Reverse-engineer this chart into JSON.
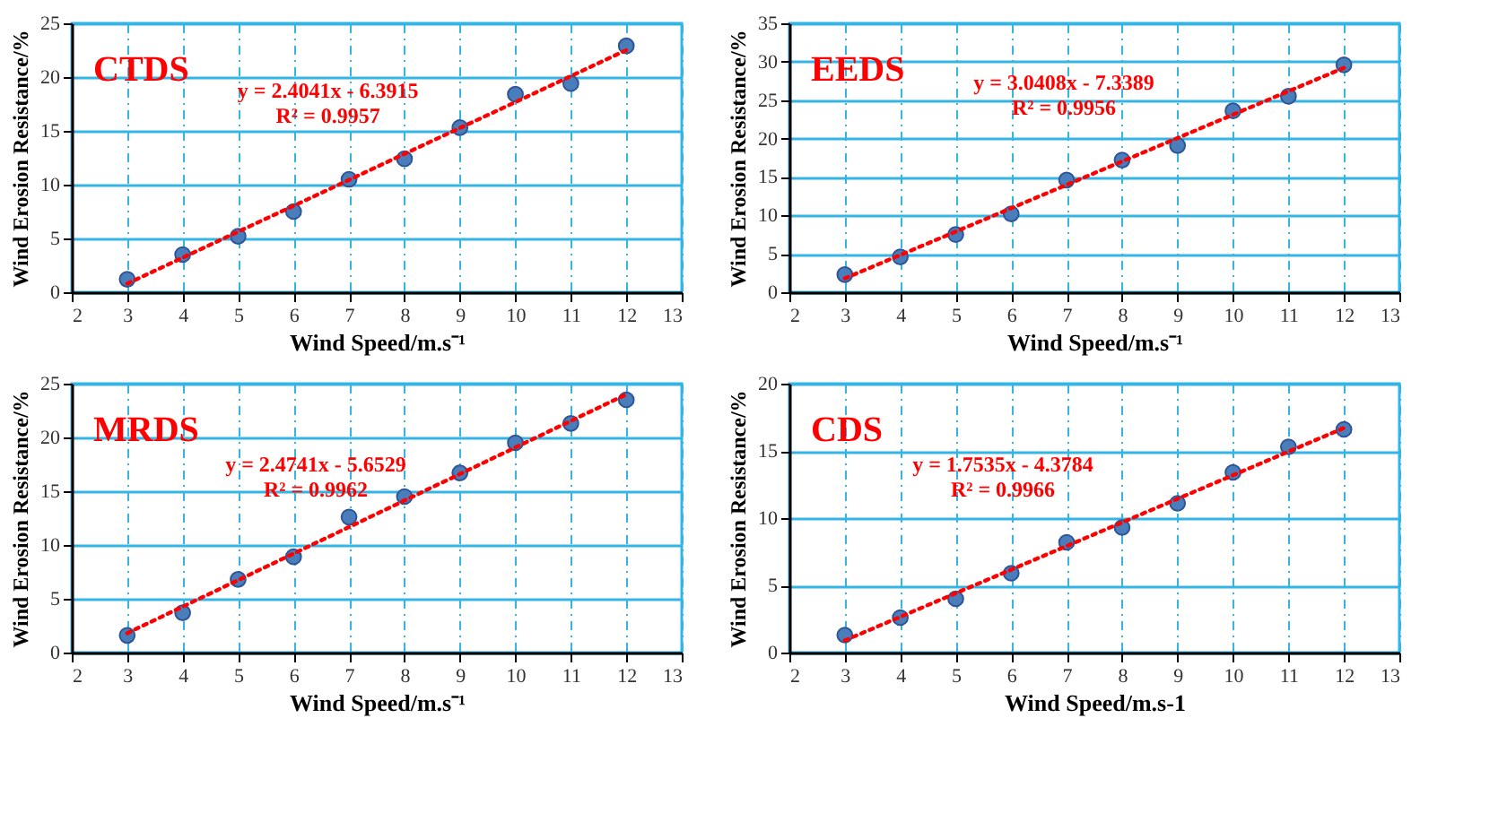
{
  "chart_data": [
    {
      "type": "scatter",
      "title": "CTDS",
      "xlabel": "Wind Speed/m.s⁻¹",
      "ylabel": "Wind Erosion Resistance/%",
      "xlim": [
        2,
        13
      ],
      "xticks": [
        2,
        3,
        4,
        5,
        6,
        7,
        8,
        9,
        10,
        11,
        12,
        13
      ],
      "ylim": [
        0,
        25
      ],
      "yticks": [
        0,
        5,
        10,
        15,
        20,
        25
      ],
      "grid": true,
      "annotations": [
        "y = 2.4041x - 6.3915",
        "R² = 0.9957"
      ],
      "series": [
        {
          "type": "scatter",
          "marker": "circle",
          "color": "#4a7ebb",
          "x": [
            3,
            4,
            5,
            6,
            7,
            8,
            9,
            10,
            11,
            12
          ],
          "values": [
            1.2,
            3.5,
            5.2,
            7.5,
            10.5,
            12.4,
            15.3,
            18.4,
            19.4,
            22.9
          ]
        },
        {
          "type": "line",
          "color": "#ff0000",
          "line_style": "dotted",
          "x": [
            3,
            12
          ],
          "values": [
            0.8,
            22.5
          ]
        }
      ]
    },
    {
      "type": "scatter",
      "title": "EEDS",
      "xlabel": "Wind Speed/m.s⁻¹",
      "ylabel": "Wind Erosion Resistance/%",
      "xlim": [
        2,
        13
      ],
      "xticks": [
        2,
        3,
        4,
        5,
        6,
        7,
        8,
        9,
        10,
        11,
        12,
        13
      ],
      "ylim": [
        0,
        35
      ],
      "yticks": [
        0,
        5,
        10,
        15,
        20,
        25,
        30,
        35
      ],
      "grid": true,
      "annotations": [
        "y = 3.0408x - 7.3389",
        "R² = 0.9956"
      ],
      "series": [
        {
          "type": "scatter",
          "marker": "circle",
          "color": "#4a7ebb",
          "x": [
            3,
            4,
            5,
            6,
            7,
            8,
            9,
            10,
            11,
            12
          ],
          "values": [
            2.3,
            4.6,
            7.5,
            10.2,
            14.6,
            17.2,
            19.1,
            23.6,
            25.5,
            29.6
          ]
        },
        {
          "type": "line",
          "color": "#ff0000",
          "line_style": "dotted",
          "x": [
            3,
            12
          ],
          "values": [
            1.8,
            29.2
          ]
        }
      ]
    },
    {
      "type": "scatter",
      "title": "MRDS",
      "xlabel": "Wind Speed/m.s⁻¹",
      "ylabel": "Wind Erosion Resistance/%",
      "xlim": [
        2,
        13
      ],
      "xticks": [
        2,
        3,
        4,
        5,
        6,
        7,
        8,
        9,
        10,
        11,
        12,
        13
      ],
      "ylim": [
        0,
        25
      ],
      "yticks": [
        0,
        5,
        10,
        15,
        20,
        25
      ],
      "grid": true,
      "annotations": [
        "y = 2.4741x - 5.6529",
        "R² = 0.9962"
      ],
      "series": [
        {
          "type": "scatter",
          "marker": "circle",
          "color": "#4a7ebb",
          "x": [
            3,
            4,
            5,
            6,
            7,
            8,
            9,
            10,
            11,
            12
          ],
          "values": [
            1.6,
            3.7,
            6.8,
            8.9,
            12.6,
            14.5,
            16.7,
            19.5,
            21.3,
            23.5
          ]
        },
        {
          "type": "line",
          "color": "#ff0000",
          "line_style": "dotted",
          "x": [
            3,
            12
          ],
          "values": [
            1.8,
            24.0
          ]
        }
      ]
    },
    {
      "type": "scatter",
      "title": "CDS",
      "xlabel": "Wind Speed/m.s-1",
      "ylabel": "Wind Erosion Resistance/%",
      "xlim": [
        2,
        13
      ],
      "xticks": [
        2,
        3,
        4,
        5,
        6,
        7,
        8,
        9,
        10,
        11,
        12,
        13
      ],
      "ylim": [
        0,
        20
      ],
      "yticks": [
        0,
        5,
        10,
        15,
        20
      ],
      "grid": true,
      "annotations": [
        "y = 1.7535x - 4.3784",
        "R² = 0.9966"
      ],
      "series": [
        {
          "type": "scatter",
          "marker": "circle",
          "color": "#4a7ebb",
          "x": [
            3,
            4,
            5,
            6,
            7,
            8,
            9,
            10,
            11,
            12
          ],
          "values": [
            1.3,
            2.6,
            4.0,
            5.9,
            8.2,
            9.3,
            11.1,
            13.4,
            15.3,
            16.6
          ]
        },
        {
          "type": "line",
          "color": "#ff0000",
          "line_style": "dotted",
          "x": [
            3,
            12
          ],
          "values": [
            0.9,
            16.7
          ]
        }
      ]
    }
  ]
}
